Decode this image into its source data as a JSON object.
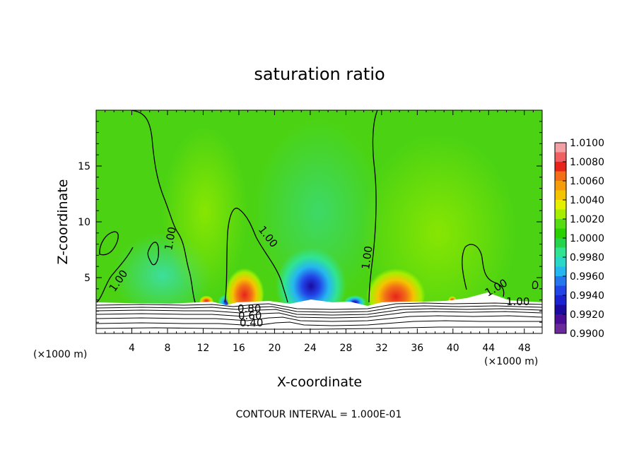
{
  "chart_data": {
    "type": "heatmap",
    "title": "saturation ratio",
    "xlabel": "X-coordinate",
    "ylabel": "Z-coordinate",
    "x_unit_label": "(×1000 m)",
    "x_unit_label_right": "(×1000 m)",
    "xlim": [
      0,
      50
    ],
    "ylim": [
      0,
      20
    ],
    "x_ticks": [
      4,
      8,
      12,
      16,
      20,
      24,
      28,
      32,
      36,
      40,
      44,
      48
    ],
    "x_tick_labels": [
      "4",
      "8",
      "12",
      "16",
      "20",
      "24",
      "28",
      "32",
      "36",
      "40",
      "44",
      "48"
    ],
    "y_ticks": [
      5,
      10,
      15
    ],
    "y_tick_labels": [
      "5",
      "10",
      "15"
    ],
    "colorbar": {
      "range": [
        0.99,
        1.01
      ],
      "labels": [
        "1.0100",
        "1.0080",
        "1.0060",
        "1.0040",
        "1.0020",
        "1.0000",
        "0.9980",
        "0.9960",
        "0.9940",
        "0.9920",
        "0.9900"
      ],
      "bands": [
        "#f3a0a4",
        "#f05f62",
        "#e8231c",
        "#f26e17",
        "#f59c0a",
        "#f5c400",
        "#e5f000",
        "#a5ee00",
        "#56dc13",
        "#2ad100",
        "#26d44b",
        "#31e491",
        "#2ad8c8",
        "#25b7f0",
        "#2577ee",
        "#2245e8",
        "#1c22d0",
        "#1a0aa0",
        "#4a0e96",
        "#6a2a9a"
      ]
    },
    "contour_labels": [
      "1.00",
      "1.00",
      "1.00",
      "1.00",
      "1.00",
      "1.00",
      "0.80",
      "0.60",
      "0.40"
    ],
    "background_color": "#4bd313",
    "footer": "CONTOUR INTERVAL = 1.000E-01"
  }
}
